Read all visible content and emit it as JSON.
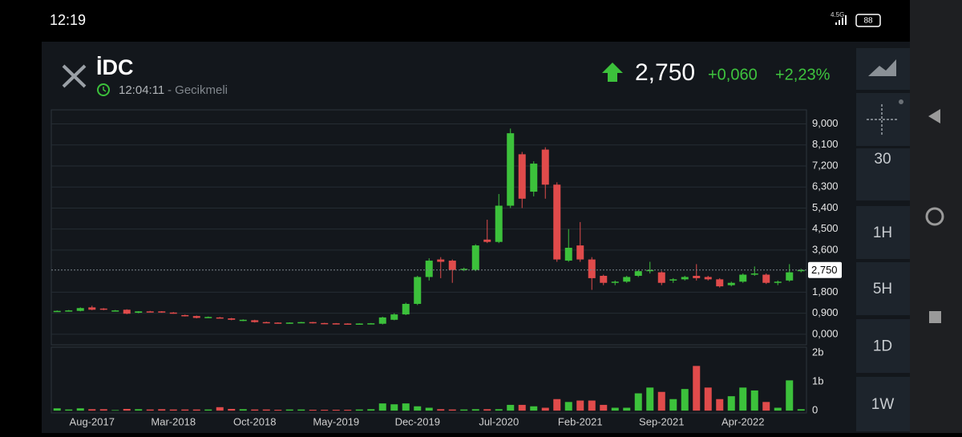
{
  "status_bar": {
    "time": "12:19",
    "network": "4.5G",
    "battery": "88"
  },
  "header": {
    "symbol": "İDC",
    "time": "12:04:11",
    "delay_note": "- Gecikmeli",
    "price": "2,750",
    "change": "+0,060",
    "change_percent": "+2,23%"
  },
  "sidebar": {
    "intervals": [
      "30",
      "1H",
      "5H",
      "1D",
      "1W"
    ]
  },
  "chart_data": [
    {
      "type": "candlestick",
      "up_color": "#3cc13b",
      "down_color": "#e04b4b",
      "grid": true,
      "categories": [
        null,
        null,
        null,
        "Aug-2017",
        null,
        null,
        null,
        null,
        null,
        null,
        "Mar-2018",
        null,
        null,
        null,
        null,
        null,
        null,
        "Oct-2018",
        null,
        null,
        null,
        null,
        null,
        null,
        "May-2019",
        null,
        null,
        null,
        null,
        null,
        null,
        "Dec-2019",
        null,
        null,
        null,
        null,
        null,
        null,
        "Jul-2020",
        null,
        null,
        null,
        null,
        null,
        null,
        "Feb-2021",
        null,
        null,
        null,
        null,
        null,
        null,
        "Sep-2021",
        null,
        null,
        null,
        null,
        null,
        null,
        "Apr-2022",
        null,
        null,
        null,
        null,
        null
      ],
      "open": [
        0.98,
        0.98,
        1.0,
        1.15,
        1.1,
        1.0,
        1.05,
        0.92,
        0.98,
        0.98,
        0.93,
        0.82,
        0.78,
        0.72,
        0.72,
        0.68,
        0.58,
        0.6,
        0.52,
        0.5,
        0.49,
        0.5,
        0.52,
        0.48,
        0.47,
        0.46,
        0.45,
        0.46,
        0.45,
        0.62,
        0.85,
        1.3,
        2.45,
        3.2,
        3.15,
        2.78,
        2.75,
        4.05,
        3.95,
        5.5,
        7.7,
        6.1,
        7.9,
        6.4,
        3.15,
        3.8,
        3.2,
        2.5,
        2.2,
        2.25,
        2.5,
        2.7,
        2.65,
        2.3,
        2.35,
        2.5,
        2.45,
        2.35,
        2.1,
        2.25,
        2.55,
        2.55,
        2.2,
        2.3,
        2.7
      ],
      "high": [
        1.02,
        1.04,
        1.15,
        1.22,
        1.12,
        1.04,
        1.07,
        0.99,
        1.0,
        0.99,
        0.95,
        0.84,
        0.8,
        0.76,
        0.74,
        0.7,
        0.64,
        0.62,
        0.54,
        0.51,
        0.51,
        0.53,
        0.53,
        0.49,
        0.48,
        0.47,
        0.47,
        0.48,
        0.75,
        0.9,
        1.35,
        2.5,
        3.25,
        3.3,
        3.2,
        2.85,
        3.85,
        4.9,
        6.0,
        8.8,
        7.8,
        7.4,
        8.0,
        6.5,
        4.5,
        4.8,
        3.3,
        2.55,
        2.3,
        2.5,
        2.75,
        3.1,
        2.7,
        2.4,
        2.5,
        3.0,
        2.5,
        2.4,
        2.25,
        2.6,
        2.9,
        2.6,
        2.3,
        3.0,
        2.8
      ],
      "low": [
        0.96,
        0.97,
        0.98,
        1.03,
        1.03,
        0.98,
        0.86,
        0.9,
        0.94,
        0.92,
        0.88,
        0.76,
        0.68,
        0.7,
        0.69,
        0.6,
        0.56,
        0.5,
        0.48,
        0.46,
        0.47,
        0.48,
        0.46,
        0.45,
        0.44,
        0.43,
        0.44,
        0.45,
        0.42,
        0.6,
        0.82,
        1.25,
        2.3,
        2.4,
        2.2,
        2.7,
        2.7,
        3.9,
        3.9,
        5.4,
        5.4,
        5.9,
        5.8,
        3.1,
        3.1,
        3.1,
        1.9,
        2.1,
        2.1,
        2.2,
        2.45,
        2.6,
        2.1,
        2.2,
        2.3,
        2.3,
        2.3,
        2.0,
        2.05,
        2.2,
        2.5,
        2.15,
        2.1,
        2.25,
        2.65
      ],
      "close": [
        1.0,
        1.02,
        1.12,
        1.05,
        1.05,
        1.02,
        0.88,
        0.98,
        0.96,
        0.94,
        0.9,
        0.78,
        0.7,
        0.74,
        0.71,
        0.62,
        0.62,
        0.52,
        0.5,
        0.48,
        0.5,
        0.52,
        0.48,
        0.47,
        0.46,
        0.45,
        0.46,
        0.47,
        0.72,
        0.85,
        1.3,
        2.45,
        3.15,
        3.1,
        2.75,
        2.8,
        3.8,
        3.95,
        5.5,
        8.6,
        5.8,
        7.3,
        6.4,
        3.2,
        3.7,
        3.2,
        2.4,
        2.2,
        2.25,
        2.45,
        2.7,
        2.75,
        2.2,
        2.35,
        2.45,
        2.4,
        2.35,
        2.05,
        2.2,
        2.55,
        2.6,
        2.2,
        2.25,
        2.65,
        2.75
      ],
      "last_price": {
        "value": 2.75,
        "label": "2,750"
      },
      "ylim": [
        -0.45,
        9.6
      ],
      "yticks": [
        {
          "value": 0,
          "label": "0,000"
        },
        {
          "value": 0.9,
          "label": "0,900"
        },
        {
          "value": 1.8,
          "label": "1,800"
        },
        {
          "value": 3.6,
          "label": "3,600"
        },
        {
          "value": 4.5,
          "label": "4,500"
        },
        {
          "value": 5.4,
          "label": "5,400"
        },
        {
          "value": 6.3,
          "label": "6,300"
        },
        {
          "value": 7.2,
          "label": "7,200"
        },
        {
          "value": 8.1,
          "label": "8,100"
        },
        {
          "value": 9.0,
          "label": "9,000"
        }
      ]
    },
    {
      "type": "bar",
      "values": [
        0.08,
        0.04,
        0.08,
        0.05,
        0.05,
        0.02,
        0.06,
        0.05,
        0.04,
        0.05,
        0.04,
        0.04,
        0.04,
        0.04,
        0.12,
        0.06,
        0.05,
        0.04,
        0.04,
        0.03,
        0.04,
        0.04,
        0.03,
        0.03,
        0.03,
        0.03,
        0.04,
        0.05,
        0.25,
        0.22,
        0.25,
        0.15,
        0.1,
        0.05,
        0.04,
        0.04,
        0.05,
        0.05,
        0.05,
        0.2,
        0.2,
        0.15,
        0.1,
        0.4,
        0.3,
        0.35,
        0.35,
        0.2,
        0.1,
        0.1,
        0.6,
        0.8,
        0.65,
        0.4,
        0.75,
        1.55,
        0.8,
        0.4,
        0.5,
        0.8,
        0.7,
        0.3,
        0.1,
        1.05,
        0.05
      ],
      "ylim": [
        -0.08,
        2.2
      ],
      "yticks": [
        0,
        {
          "value": 1,
          "label": "1b"
        },
        {
          "value": 2,
          "label": "2b"
        }
      ]
    }
  ]
}
